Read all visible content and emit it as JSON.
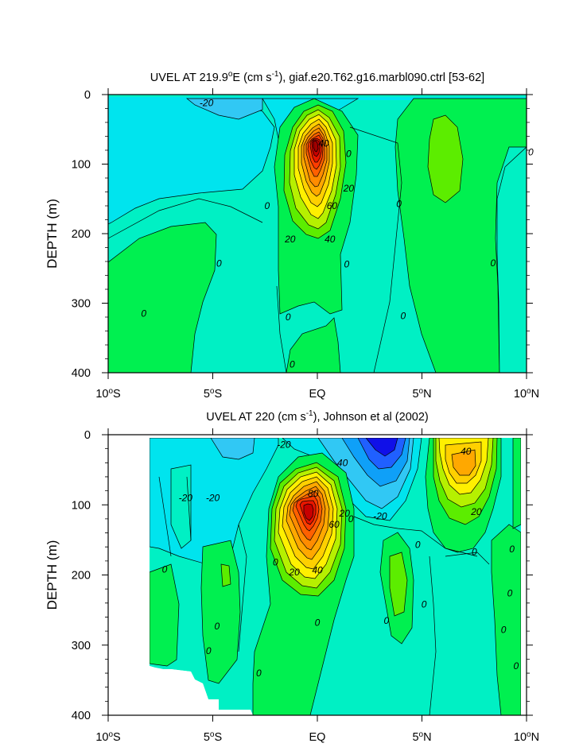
{
  "chart_data": [
    {
      "type": "contour",
      "title": "UVEL AT 219.9°E (cm s⁻¹), giaf.e20.T62.g16.marbl090.ctrl [53-62]",
      "title_parts": {
        "prefix": "UVEL AT 219.9",
        "sup1": "o",
        "mid": "E (cm s",
        "sup2": "-1",
        "suffix": "), giaf.e20.T62.g16.marbl090.ctrl [53-62]"
      },
      "ylabel": "DEPTH (m)",
      "xlim": [
        -10,
        10
      ],
      "ylim": [
        400,
        0
      ],
      "xticks": [
        {
          "value": -10,
          "num": "10",
          "hemi": "S"
        },
        {
          "value": -5,
          "num": "5",
          "hemi": "S"
        },
        {
          "value": 0,
          "num": "EQ",
          "hemi": ""
        },
        {
          "value": 5,
          "num": "5",
          "hemi": "N"
        },
        {
          "value": 10,
          "num": "10",
          "hemi": "N"
        }
      ],
      "yticks": [
        "0",
        "100",
        "200",
        "300",
        "400"
      ],
      "contour_interval": 10,
      "contour_labels": [
        {
          "text": "-20",
          "x": -5.3,
          "y": 12
        },
        {
          "text": "40",
          "x": 0.3,
          "y": 70
        },
        {
          "text": "0",
          "x": 1.5,
          "y": 85
        },
        {
          "text": "0",
          "x": 10.2,
          "y": 83
        },
        {
          "text": "20",
          "x": 1.5,
          "y": 135
        },
        {
          "text": "60",
          "x": 0.7,
          "y": 160
        },
        {
          "text": "0",
          "x": -2.4,
          "y": 160
        },
        {
          "text": "0",
          "x": 3.9,
          "y": 157
        },
        {
          "text": "20",
          "x": -1.3,
          "y": 208
        },
        {
          "text": "40",
          "x": 0.6,
          "y": 208
        },
        {
          "text": "0",
          "x": -4.7,
          "y": 243
        },
        {
          "text": "0",
          "x": 1.4,
          "y": 244
        },
        {
          "text": "0",
          "x": 8.4,
          "y": 242
        },
        {
          "text": "0",
          "x": -8.3,
          "y": 315
        },
        {
          "text": "0",
          "x": -1.4,
          "y": 320
        },
        {
          "text": "0",
          "x": 4.1,
          "y": 318
        },
        {
          "text": "0",
          "x": -1.2,
          "y": 388
        }
      ]
    },
    {
      "type": "contour",
      "title": "UVEL AT 220 (cm s⁻¹), Johnson et al (2002)",
      "title_parts": {
        "prefix": "UVEL AT 220 (cm s",
        "sup2": "-1",
        "suffix": "), Johnson et al (2002)"
      },
      "ylabel": "DEPTH (m)",
      "xlim": [
        -10,
        10
      ],
      "ylim": [
        400,
        0
      ],
      "xticks": [
        {
          "value": -10,
          "num": "10",
          "hemi": "S"
        },
        {
          "value": -5,
          "num": "5",
          "hemi": "S"
        },
        {
          "value": 0,
          "num": "EQ",
          "hemi": ""
        },
        {
          "value": 5,
          "num": "5",
          "hemi": "N"
        },
        {
          "value": 10,
          "num": "10",
          "hemi": "N"
        }
      ],
      "yticks": [
        "0",
        "100",
        "200",
        "300",
        "400"
      ],
      "contour_interval": 10,
      "contour_labels": [
        {
          "text": "-20",
          "x": -1.6,
          "y": 14
        },
        {
          "text": "40",
          "x": 1.2,
          "y": 40
        },
        {
          "text": "40",
          "x": 7.1,
          "y": 24
        },
        {
          "text": "-20",
          "x": -6.3,
          "y": 90
        },
        {
          "text": "-20",
          "x": -5.0,
          "y": 90
        },
        {
          "text": "80",
          "x": -0.2,
          "y": 84
        },
        {
          "text": "20",
          "x": 1.3,
          "y": 112
        },
        {
          "text": "60",
          "x": 0.8,
          "y": 128
        },
        {
          "text": "-20",
          "x": 3.0,
          "y": 116
        },
        {
          "text": "20",
          "x": 7.6,
          "y": 110
        },
        {
          "text": "0",
          "x": 1.6,
          "y": 120
        },
        {
          "text": "0",
          "x": 4.8,
          "y": 157
        },
        {
          "text": "0",
          "x": 7.5,
          "y": 167
        },
        {
          "text": "0",
          "x": 9.3,
          "y": 163
        },
        {
          "text": "0",
          "x": -2.0,
          "y": 182
        },
        {
          "text": "20",
          "x": -1.1,
          "y": 196
        },
        {
          "text": "40",
          "x": 0.0,
          "y": 193
        },
        {
          "text": "0",
          "x": -7.3,
          "y": 192
        },
        {
          "text": "0",
          "x": 5.1,
          "y": 242
        },
        {
          "text": "0",
          "x": 9.2,
          "y": 226
        },
        {
          "text": "0",
          "x": -4.8,
          "y": 273
        },
        {
          "text": "0",
          "x": 0.0,
          "y": 268
        },
        {
          "text": "0",
          "x": 3.3,
          "y": 265
        },
        {
          "text": "0",
          "x": 8.9,
          "y": 278
        },
        {
          "text": "0",
          "x": -5.2,
          "y": 308
        },
        {
          "text": "0",
          "x": -2.8,
          "y": 340
        },
        {
          "text": "0",
          "x": 9.5,
          "y": 330
        }
      ]
    }
  ]
}
